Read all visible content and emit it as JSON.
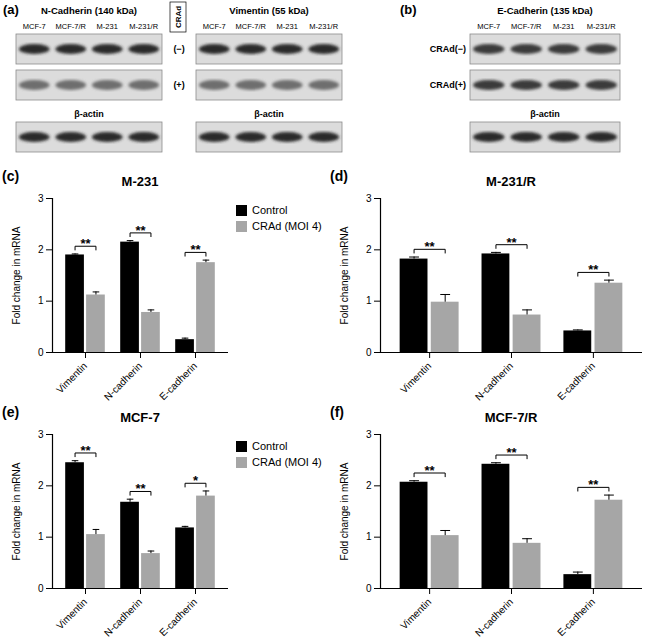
{
  "blots": {
    "a": {
      "label": "(a)",
      "proteins": [
        "N-Cadherin (140 kDa)",
        "Vimentin (55 kDa)"
      ],
      "lanes": [
        "MCF-7",
        "MCF-7/R",
        "M-231",
        "M-231/R"
      ],
      "treatment_label": "CRAd",
      "rows": [
        "(−)",
        "(+)"
      ],
      "loading_control": "β-actin"
    },
    "b": {
      "label": "(b)",
      "protein": "E-Cadherin (135 kDa)",
      "lanes": [
        "MCF-7",
        "MCF-7/R",
        "M-231",
        "M-231/R"
      ],
      "rows": [
        "CRAd(−)",
        "CRAd(+)"
      ],
      "loading_control": "β-actin"
    }
  },
  "chart_data": [
    {
      "panel": "(c)",
      "type": "bar",
      "title": "M-231",
      "y_label": "Fold change in mRNA",
      "categories": [
        "Vimentin",
        "N-cadherin",
        "E-cadherin"
      ],
      "series": [
        {
          "name": "Control",
          "color": "#000000",
          "values": [
            1.9,
            2.15,
            0.25
          ],
          "errors": [
            0.02,
            0.03,
            0.03
          ]
        },
        {
          "name": "CRAd (MOI 4)",
          "color": "#a6a6a6",
          "values": [
            1.12,
            0.78,
            1.75
          ],
          "errors": [
            0.06,
            0.05,
            0.05
          ]
        }
      ],
      "significance": [
        "**",
        "**",
        "**"
      ],
      "ylim": [
        0,
        3
      ],
      "yticks": [
        0,
        1,
        2,
        3
      ],
      "legend": "top-right"
    },
    {
      "panel": "(d)",
      "type": "bar",
      "title": "M-231/R",
      "y_label": "Fold change in mRNA",
      "categories": [
        "Vimentin",
        "N-cadherin",
        "E-cadherin"
      ],
      "series": [
        {
          "name": "Control",
          "color": "#000000",
          "values": [
            1.82,
            1.92,
            0.42
          ],
          "errors": [
            0.04,
            0.03,
            0.02
          ]
        },
        {
          "name": "CRAd (MOI 4)",
          "color": "#a6a6a6",
          "values": [
            0.98,
            0.73,
            1.35
          ],
          "errors": [
            0.15,
            0.1,
            0.06
          ]
        }
      ],
      "significance": [
        "**",
        "**",
        "**"
      ],
      "ylim": [
        0,
        3
      ],
      "yticks": [
        0,
        1,
        2,
        3
      ]
    },
    {
      "panel": "(e)",
      "type": "bar",
      "title": "MCF-7",
      "y_label": "Fold change in mRNA",
      "categories": [
        "Vimentin",
        "N-cadherin",
        "E-cadherin"
      ],
      "series": [
        {
          "name": "Control",
          "color": "#000000",
          "values": [
            2.45,
            1.68,
            1.18
          ],
          "errors": [
            0.04,
            0.06,
            0.03
          ]
        },
        {
          "name": "CRAd (MOI 4)",
          "color": "#a6a6a6",
          "values": [
            1.05,
            0.68,
            1.8
          ],
          "errors": [
            0.1,
            0.05,
            0.1
          ]
        }
      ],
      "significance": [
        "**",
        "**",
        "*"
      ],
      "ylim": [
        0,
        3
      ],
      "yticks": [
        0,
        1,
        2,
        3
      ],
      "legend": "top-right"
    },
    {
      "panel": "(f)",
      "type": "bar",
      "title": "MCF-7/R",
      "y_label": "Fold change in mRNA",
      "categories": [
        "Vimentin",
        "N-cadherin",
        "E-cadherin"
      ],
      "series": [
        {
          "name": "Control",
          "color": "#000000",
          "values": [
            2.07,
            2.42,
            0.27
          ],
          "errors": [
            0.03,
            0.03,
            0.05
          ]
        },
        {
          "name": "CRAd (MOI 4)",
          "color": "#a6a6a6",
          "values": [
            1.03,
            0.88,
            1.72
          ],
          "errors": [
            0.1,
            0.09,
            0.1
          ]
        }
      ],
      "significance": [
        "**",
        "**",
        "**"
      ],
      "ylim": [
        0,
        3
      ],
      "yticks": [
        0,
        1,
        2,
        3
      ]
    }
  ]
}
